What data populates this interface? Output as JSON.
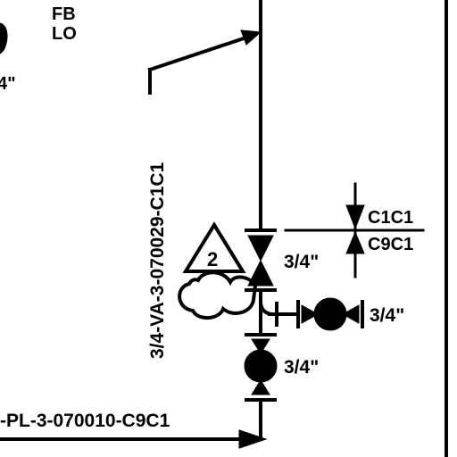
{
  "labels": {
    "fb": "FB",
    "lo": "LO",
    "left_partial_size": "4\"",
    "line_vertical": "3/4-VA-3-070029-C1C1",
    "line_bottom": "-PL-3-070010-C9C1",
    "spec_upper": "C1C1",
    "spec_lower": "C9C1",
    "size_gate_valve": "3/4\"",
    "size_branch_valve": "3/4\"",
    "size_bottom_valve": "3/4\"",
    "triangle_tag": "2"
  },
  "colors": {
    "ink": "#000000",
    "paper": "#ffffff"
  },
  "icons": {
    "revision_triangle": "triangle-icon",
    "cloud_note": "cloud-icon",
    "ball_valve": "ball-valve-icon",
    "gate_valve": "gate-valve-icon",
    "spec_break": "spec-break-icon",
    "flow_arrow": "arrow-icon"
  }
}
